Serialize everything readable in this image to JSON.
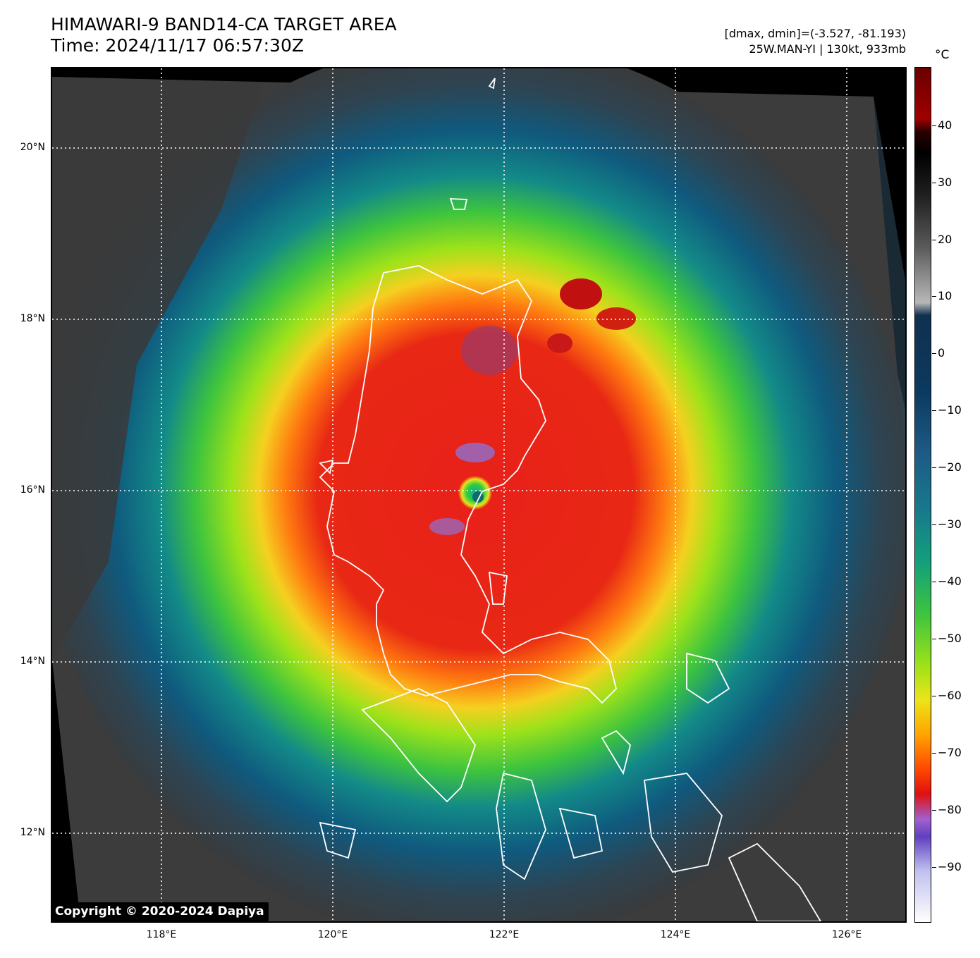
{
  "header": {
    "title_line1": "HIMAWARI-9 BAND14-CA TARGET AREA",
    "title_line2": "Time: 2024/11/17 06:57:30Z",
    "range_text": "[dmax, dmin]=(-3.527, -81.193)",
    "storm_text": "25W.MAN-YI | 130kt, 933mb"
  },
  "map": {
    "lat_labels": [
      "20°N",
      "18°N",
      "16°N",
      "14°N",
      "12°N"
    ],
    "lon_labels": [
      "118°E",
      "120°E",
      "122°E",
      "124°E",
      "126°E"
    ],
    "copyright": "Copyright © 2020-2024 Dapiya"
  },
  "colorbar": {
    "unit": "°C",
    "ticks": [
      "40",
      "30",
      "20",
      "10",
      "0",
      "−10",
      "−20",
      "−30",
      "−40",
      "−50",
      "−60",
      "−70",
      "−80",
      "−90"
    ]
  }
}
